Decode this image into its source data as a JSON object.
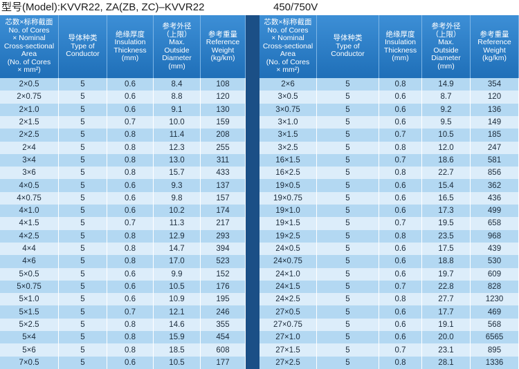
{
  "header": {
    "model": "型号(Model):KVVR22, ZA(ZB, ZC)–KVVR22",
    "voltage": "450/750V"
  },
  "columns": [
    [
      "芯数×标称截面",
      "No. of Cores",
      "× Nominal",
      "Cross-sectional",
      "Area",
      "(No. of Cores",
      "× mm²)"
    ],
    [
      "导体种类",
      "Type of",
      "Conductor"
    ],
    [
      "绝缘厚度",
      "Insulation",
      "Thickness",
      "(mm)"
    ],
    [
      "参考外径",
      "（上限）",
      "Max.",
      "Outside",
      "Diameter",
      "(mm)"
    ],
    [
      "参考重量",
      "Reference",
      "Weight",
      "(kg/km)"
    ]
  ],
  "left_rows": [
    [
      "2×0.5",
      "5",
      "0.6",
      "8.4",
      "108"
    ],
    [
      "2×0.75",
      "5",
      "0.6",
      "8.8",
      "120"
    ],
    [
      "2×1.0",
      "5",
      "0.6",
      "9.1",
      "130"
    ],
    [
      "2×1.5",
      "5",
      "0.7",
      "10.0",
      "159"
    ],
    [
      "2×2.5",
      "5",
      "0.8",
      "11.4",
      "208"
    ],
    [
      "2×4",
      "5",
      "0.8",
      "12.3",
      "255"
    ],
    [
      "3×4",
      "5",
      "0.8",
      "13.0",
      "311"
    ],
    [
      "3×6",
      "5",
      "0.8",
      "15.7",
      "433"
    ],
    [
      "4×0.5",
      "5",
      "0.6",
      "9.3",
      "137"
    ],
    [
      "4×0.75",
      "5",
      "0.6",
      "9.8",
      "157"
    ],
    [
      "4×1.0",
      "5",
      "0.6",
      "10.2",
      "174"
    ],
    [
      "4×1.5",
      "5",
      "0.7",
      "11.3",
      "217"
    ],
    [
      "4×2.5",
      "5",
      "0.8",
      "12.9",
      "293"
    ],
    [
      "4×4",
      "5",
      "0.8",
      "14.7",
      "394"
    ],
    [
      "4×6",
      "5",
      "0.8",
      "17.0",
      "523"
    ],
    [
      "5×0.5",
      "5",
      "0.6",
      "9.9",
      "152"
    ],
    [
      "5×0.75",
      "5",
      "0.6",
      "10.5",
      "176"
    ],
    [
      "5×1.0",
      "5",
      "0.6",
      "10.9",
      "195"
    ],
    [
      "5×1.5",
      "5",
      "0.7",
      "12.1",
      "246"
    ],
    [
      "5×2.5",
      "5",
      "0.8",
      "14.6",
      "355"
    ],
    [
      "5×4",
      "5",
      "0.8",
      "15.9",
      "454"
    ],
    [
      "5×6",
      "5",
      "0.8",
      "18.5",
      "608"
    ],
    [
      "7×0.5",
      "5",
      "0.6",
      "10.5",
      "177"
    ]
  ],
  "right_rows": [
    [
      "2×6",
      "5",
      "0.8",
      "14.9",
      "354"
    ],
    [
      "3×0.5",
      "5",
      "0.6",
      "8.7",
      "120"
    ],
    [
      "3×0.75",
      "5",
      "0.6",
      "9.2",
      "136"
    ],
    [
      "3×1.0",
      "5",
      "0.6",
      "9.5",
      "149"
    ],
    [
      "3×1.5",
      "5",
      "0.7",
      "10.5",
      "185"
    ],
    [
      "3×2.5",
      "5",
      "0.8",
      "12.0",
      "247"
    ],
    [
      "16×1.5",
      "5",
      "0.7",
      "18.6",
      "581"
    ],
    [
      "16×2.5",
      "5",
      "0.8",
      "22.7",
      "856"
    ],
    [
      "19×0.5",
      "5",
      "0.6",
      "15.4",
      "362"
    ],
    [
      "19×0.75",
      "5",
      "0.6",
      "16.5",
      "436"
    ],
    [
      "19×1.0",
      "5",
      "0.6",
      "17.3",
      "499"
    ],
    [
      "19×1.5",
      "5",
      "0.7",
      "19.5",
      "658"
    ],
    [
      "19×2.5",
      "5",
      "0.8",
      "23.5",
      "968"
    ],
    [
      "24×0.5",
      "5",
      "0.6",
      "17.5",
      "439"
    ],
    [
      "24×0.75",
      "5",
      "0.6",
      "18.8",
      "530"
    ],
    [
      "24×1.0",
      "5",
      "0.6",
      "19.7",
      "609"
    ],
    [
      "24×1.5",
      "5",
      "0.7",
      "22.8",
      "828"
    ],
    [
      "24×2.5",
      "5",
      "0.8",
      "27.7",
      "1230"
    ],
    [
      "27×0.5",
      "5",
      "0.6",
      "17.7",
      "469"
    ],
    [
      "27×0.75",
      "5",
      "0.6",
      "19.1",
      "568"
    ],
    [
      "27×1.0",
      "5",
      "0.6",
      "20.0",
      "6565"
    ],
    [
      "27×1.5",
      "5",
      "0.7",
      "23.1",
      "895"
    ],
    [
      "27×2.5",
      "5",
      "0.8",
      "28.1",
      "1336"
    ]
  ]
}
